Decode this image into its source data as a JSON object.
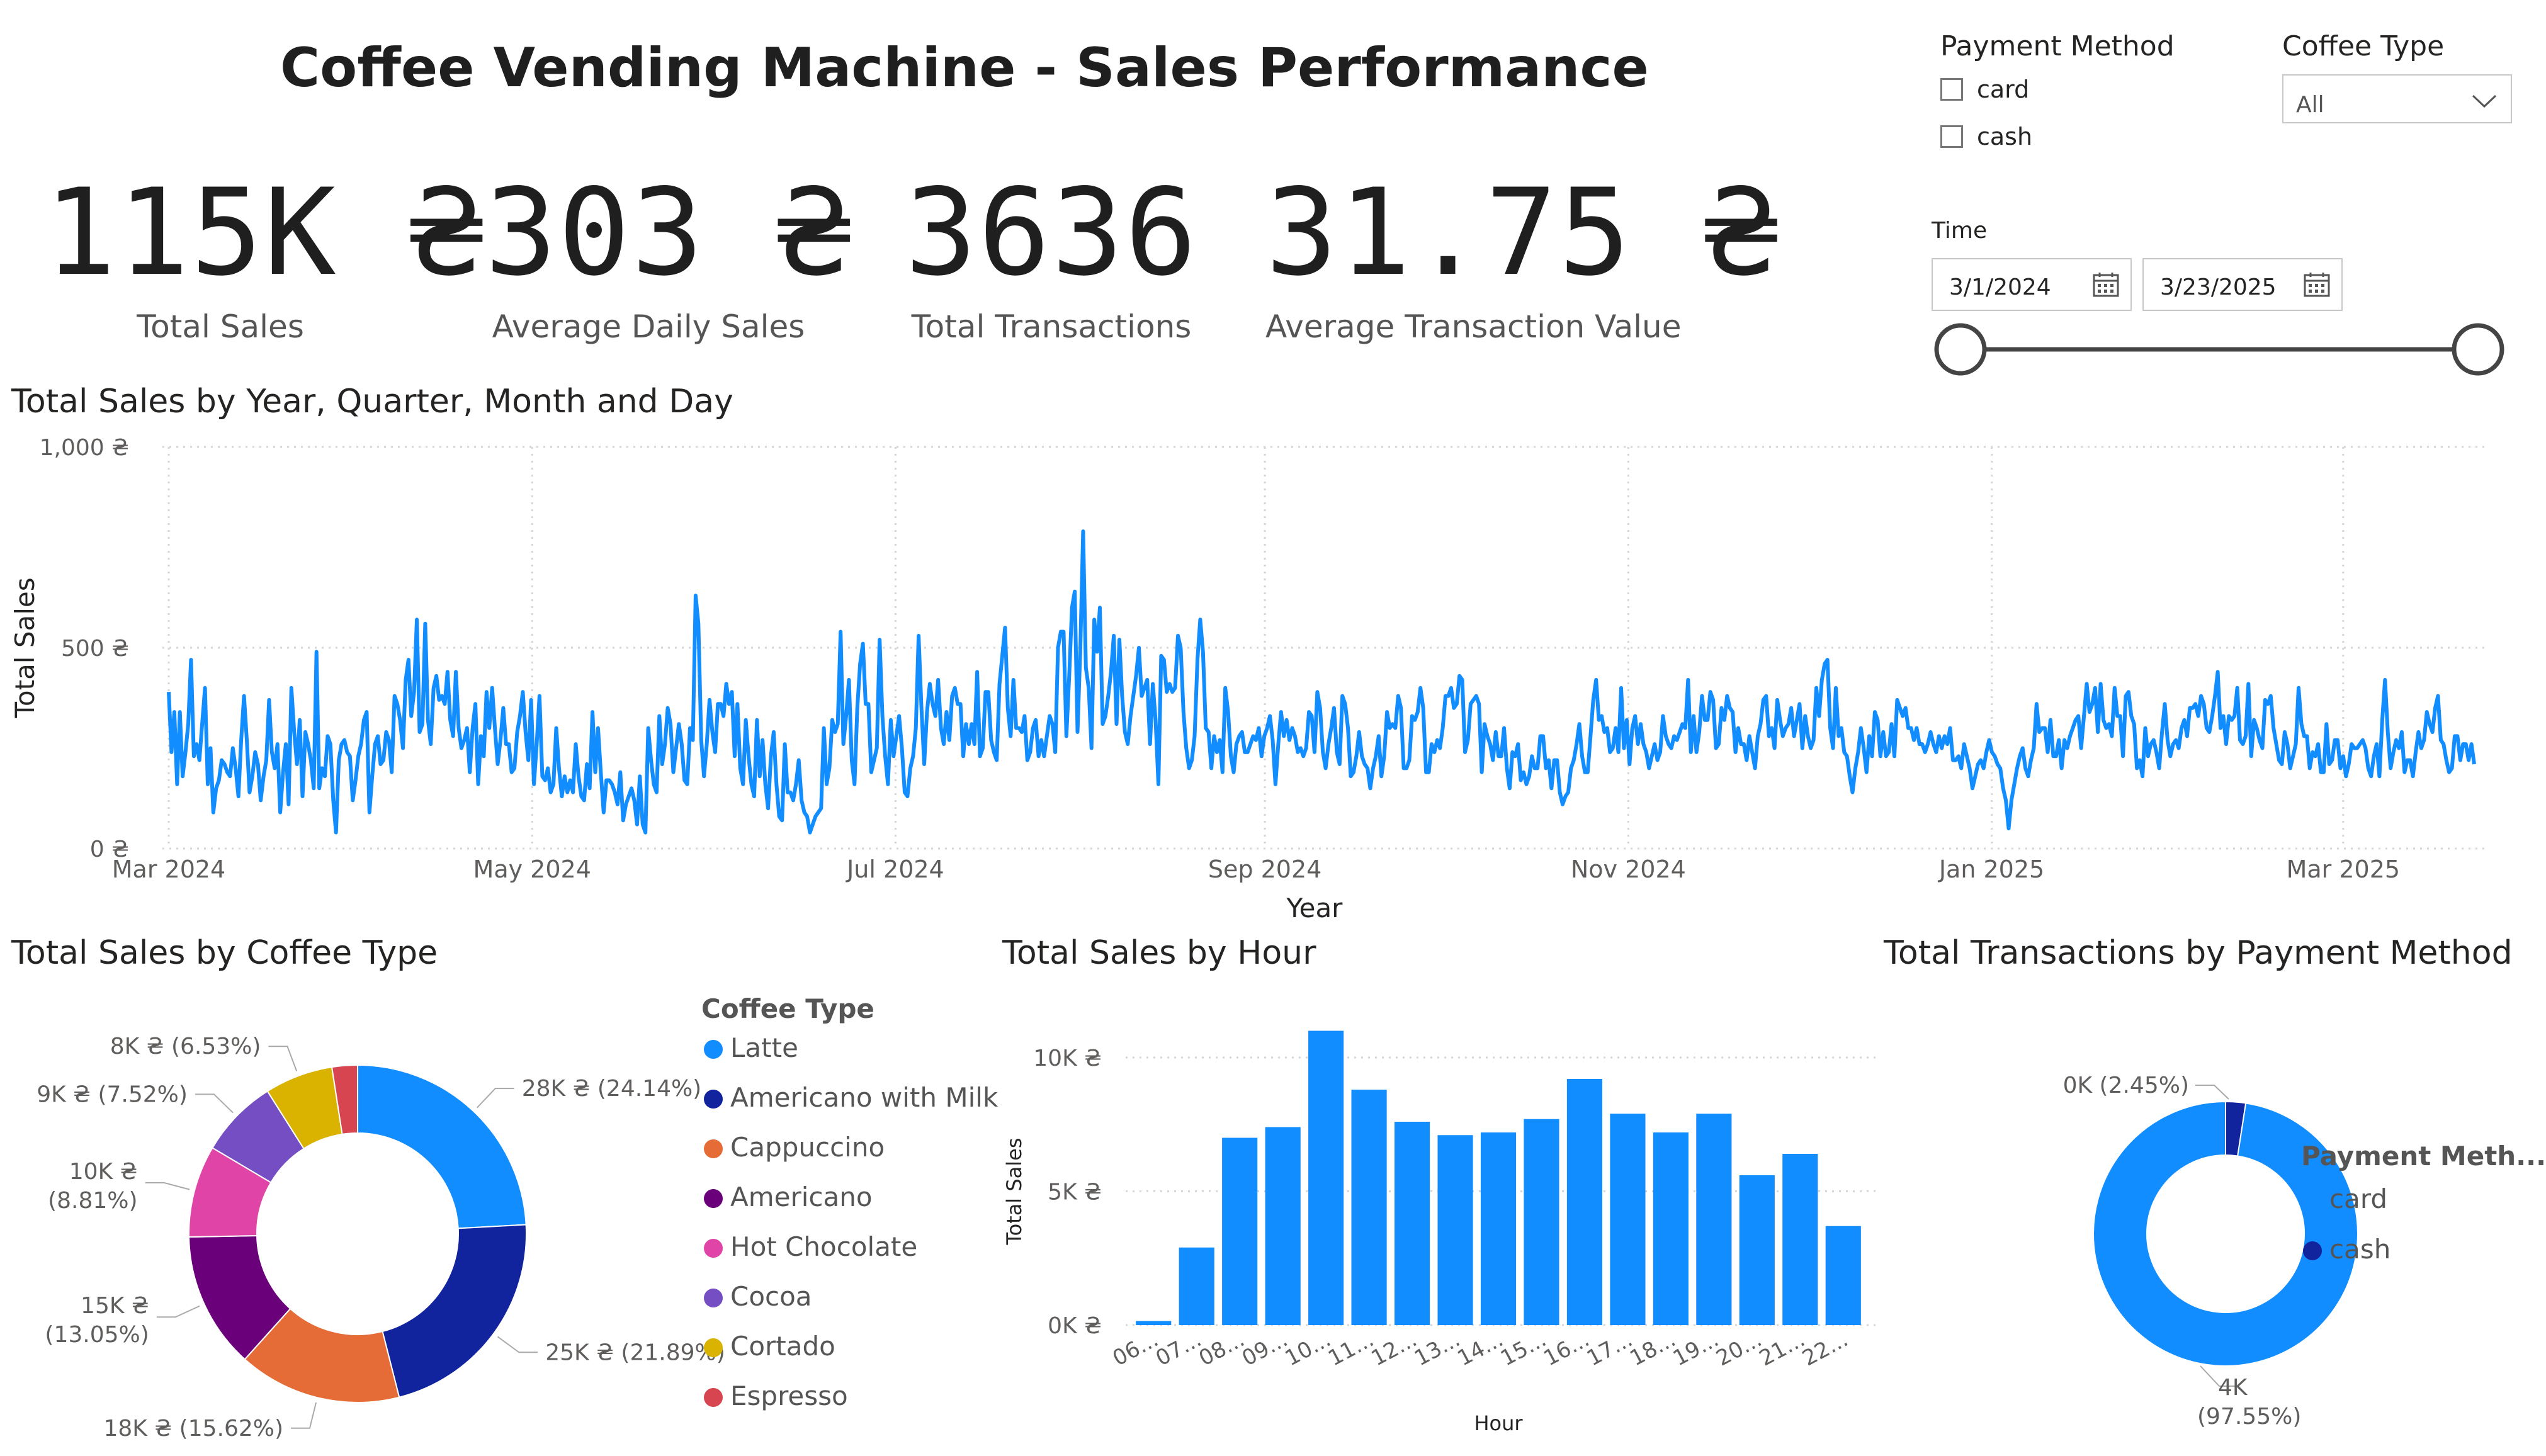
{
  "title": "Coffee Vending Machine - Sales Performance",
  "kpis": [
    {
      "value": "115K ₴",
      "label": "Total Sales"
    },
    {
      "value": "303 ₴",
      "label": "Average Daily Sales"
    },
    {
      "value": "3636",
      "label": "Total Transactions"
    },
    {
      "value": "31.75 ₴",
      "label": "Average Transaction Value"
    }
  ],
  "filters": {
    "payment_method": {
      "title": "Payment Method",
      "options": [
        "card",
        "cash"
      ]
    },
    "coffee_type": {
      "title": "Coffee Type",
      "selected": "All"
    },
    "time": {
      "title": "Time",
      "start": "3/1/2024",
      "end": "3/23/2025"
    }
  },
  "colors": {
    "primary": "#118DFF",
    "navy": "#12239E",
    "orange": "#E66C37",
    "purple": "#6B007B",
    "pink": "#E044A7",
    "violet": "#744EC2",
    "gold": "#D9B300",
    "red": "#D64550"
  },
  "line_section": {
    "title": "Total Sales by Year, Quarter, Month and Day"
  },
  "donut_section": {
    "title": "Total Sales by Coffee Type",
    "legend_title": "Coffee Type"
  },
  "hour_section": {
    "title": "Total Sales by Hour"
  },
  "pay_section": {
    "title": "Total Transactions by Payment Method",
    "legend_title": "Payment Meth..."
  },
  "chart_data": [
    {
      "type": "line",
      "title": "Total Sales by Year, Quarter, Month and Day",
      "xlabel": "Year",
      "ylabel": "Total Sales",
      "ylim": [
        0,
        1000
      ],
      "yticks": [
        "0 ₴",
        "500 ₴",
        "1,000 ₴"
      ],
      "xticks": [
        "Mar 2024",
        "May 2024",
        "Jul 2024",
        "Sep 2024",
        "Nov 2024",
        "Jan 2025",
        "Mar 2025"
      ],
      "x_start": "3/1/2024",
      "x_end": "3/23/2025",
      "values": [
        390,
        240,
        340,
        160,
        340,
        180,
        240,
        310,
        470,
        230,
        260,
        220,
        310,
        400,
        160,
        250,
        90,
        150,
        170,
        220,
        210,
        190,
        180,
        250,
        200,
        130,
        270,
        380,
        270,
        140,
        180,
        240,
        210,
        120,
        180,
        220,
        370,
        240,
        200,
        260,
        90,
        190,
        260,
        110,
        400,
        290,
        210,
        320,
        130,
        290,
        260,
        220,
        150,
        490,
        150,
        200,
        180,
        280,
        260,
        120,
        40,
        220,
        260,
        270,
        240,
        230,
        120,
        170,
        230,
        260,
        320,
        340,
        90,
        180,
        260,
        280,
        210,
        220,
        290,
        270,
        190,
        380,
        360,
        320,
        250,
        420,
        470,
        330,
        390,
        570,
        290,
        310,
        560,
        320,
        260,
        400,
        430,
        370,
        380,
        360,
        440,
        320,
        280,
        440,
        300,
        250,
        270,
        300,
        190,
        300,
        360,
        160,
        280,
        230,
        390,
        300,
        400,
        300,
        210,
        270,
        350,
        260,
        260,
        190,
        200,
        290,
        330,
        390,
        290,
        220,
        370,
        160,
        260,
        380,
        180,
        170,
        200,
        140,
        160,
        300,
        200,
        130,
        180,
        140,
        170,
        140,
        260,
        180,
        130,
        120,
        210,
        150,
        340,
        190,
        300,
        190,
        90,
        170,
        170,
        160,
        140,
        110,
        190,
        70,
        110,
        130,
        150,
        120,
        60,
        180,
        60,
        40,
        300,
        220,
        160,
        140,
        330,
        210,
        260,
        350,
        310,
        190,
        250,
        310,
        260,
        170,
        160,
        300,
        270,
        630,
        560,
        270,
        180,
        260,
        370,
        290,
        240,
        360,
        360,
        330,
        410,
        360,
        390,
        230,
        360,
        200,
        160,
        320,
        230,
        160,
        130,
        320,
        180,
        270,
        160,
        100,
        230,
        290,
        160,
        80,
        70,
        260,
        140,
        140,
        120,
        160,
        220,
        120,
        90,
        80,
        40,
        60,
        80,
        90,
        100,
        300,
        160,
        200,
        320,
        290,
        310,
        540,
        260,
        330,
        420,
        220,
        160,
        350,
        460,
        510,
        360,
        360,
        190,
        220,
        250,
        520,
        330,
        230,
        160,
        320,
        230,
        280,
        330,
        250,
        140,
        130,
        200,
        230,
        300,
        530,
        350,
        210,
        340,
        410,
        360,
        330,
        420,
        300,
        260,
        340,
        270,
        380,
        400,
        360,
        360,
        230,
        310,
        260,
        310,
        260,
        440,
        230,
        250,
        390,
        390,
        270,
        240,
        220,
        410,
        480,
        550,
        350,
        280,
        420,
        300,
        300,
        290,
        330,
        220,
        240,
        300,
        320,
        230,
        270,
        230,
        280,
        330,
        310,
        240,
        500,
        540,
        540,
        280,
        430,
        600,
        640,
        290,
        500,
        790,
        450,
        400,
        250,
        570,
        490,
        600,
        310,
        330,
        380,
        440,
        530,
        310,
        520,
        380,
        290,
        260,
        330,
        380,
        430,
        500,
        380,
        400,
        420,
        260,
        410,
        320,
        160,
        480,
        470,
        390,
        410,
        390,
        400,
        530,
        500,
        340,
        250,
        200,
        220,
        280,
        470,
        570,
        490,
        300,
        290,
        200,
        280,
        240,
        270,
        190,
        400,
        340,
        230,
        190,
        260,
        280,
        290,
        240,
        240,
        260,
        280,
        270,
        300,
        230,
        280,
        300,
        330,
        270,
        160,
        260,
        340,
        280,
        320,
        270,
        300,
        280,
        240,
        250,
        230,
        250,
        340,
        330,
        240,
        390,
        350,
        240,
        200,
        260,
        300,
        350,
        240,
        210,
        380,
        360,
        300,
        180,
        190,
        230,
        290,
        230,
        210,
        200,
        150,
        200,
        230,
        280,
        180,
        230,
        340,
        300,
        310,
        300,
        380,
        350,
        200,
        200,
        220,
        330,
        320,
        340,
        400,
        350,
        190,
        190,
        260,
        240,
        270,
        250,
        300,
        380,
        380,
        400,
        350,
        360,
        430,
        420,
        240,
        270,
        360,
        370,
        380,
        360,
        190,
        310,
        280,
        260,
        220,
        290,
        230,
        230,
        300,
        200,
        150,
        240,
        230,
        260,
        170,
        190,
        160,
        180,
        230,
        200,
        200,
        280,
        280,
        200,
        220,
        150,
        220,
        220,
        140,
        110,
        130,
        140,
        200,
        220,
        260,
        310,
        230,
        190,
        190,
        280,
        370,
        420,
        320,
        330,
        290,
        300,
        240,
        250,
        300,
        240,
        400,
        250,
        320,
        210,
        300,
        330,
        260,
        310,
        260,
        240,
        200,
        230,
        260,
        220,
        240,
        330,
        280,
        260,
        250,
        280,
        270,
        290,
        310,
        300,
        420,
        240,
        330,
        240,
        290,
        380,
        320,
        320,
        390,
        370,
        250,
        260,
        350,
        320,
        380,
        350,
        340,
        240,
        300,
        260,
        260,
        220,
        280,
        240,
        200,
        280,
        310,
        370,
        380,
        280,
        300,
        250,
        370,
        320,
        280,
        300,
        310,
        350,
        280,
        320,
        360,
        250,
        330,
        280,
        250,
        270,
        400,
        330,
        420,
        460,
        470,
        300,
        250,
        400,
        280,
        300,
        240,
        230,
        180,
        140,
        200,
        240,
        300,
        250,
        190,
        280,
        230,
        340,
        320,
        230,
        290,
        230,
        240,
        310,
        230,
        370,
        350,
        330,
        350,
        300,
        300,
        270,
        300,
        260,
        260,
        240,
        260,
        290,
        260,
        240,
        280,
        250,
        280,
        260,
        300,
        220,
        220,
        230,
        200,
        260,
        230,
        200,
        150,
        180,
        210,
        220,
        200,
        240,
        270,
        240,
        230,
        210,
        200,
        150,
        120,
        50,
        120,
        160,
        200,
        230,
        250,
        200,
        180,
        220,
        250,
        360,
        290,
        300,
        300,
        240,
        320,
        230,
        230,
        270,
        200,
        270,
        250,
        280,
        300,
        320,
        330,
        250,
        330,
        410,
        340,
        360,
        400,
        290,
        410,
        320,
        300,
        310,
        280,
        400,
        330,
        330,
        230,
        380,
        390,
        330,
        310,
        200,
        220,
        180,
        300,
        230,
        260,
        270,
        240,
        200,
        290,
        360,
        270,
        230,
        260,
        270,
        250,
        300,
        320,
        280,
        350,
        350,
        360,
        330,
        380,
        360,
        300,
        290,
        330,
        380,
        440,
        300,
        330,
        260,
        330,
        320,
        330,
        400,
        270,
        260,
        280,
        410,
        230,
        320,
        300,
        270,
        250,
        370,
        360,
        380,
        300,
        260,
        220,
        210,
        290,
        260,
        200,
        230,
        260,
        400,
        310,
        280,
        280,
        200,
        240,
        230,
        260,
        190,
        190,
        310,
        210,
        220,
        270,
        270,
        200,
        230,
        180,
        210,
        260,
        250,
        250,
        260,
        270,
        250,
        200,
        180,
        230,
        260,
        180,
        320,
        420,
        290,
        200,
        240,
        270,
        250,
        290,
        190,
        220,
        220,
        180,
        240,
        290,
        250,
        270,
        340,
        310,
        290,
        350,
        380,
        270,
        260,
        220,
        190,
        200,
        280,
        280,
        220,
        260,
        260,
        220,
        260,
        210
      ]
    },
    {
      "type": "pie",
      "title": "Total Sales by Coffee Type",
      "categories": [
        "Latte",
        "Americano with Milk",
        "Cappuccino",
        "Americano",
        "Hot Chocolate",
        "Cocoa",
        "Cortado",
        "Espresso"
      ],
      "values": [
        24.14,
        21.89,
        15.62,
        13.05,
        8.81,
        7.52,
        6.53,
        2.44
      ],
      "labels": [
        "28K ₴ (24.14%)",
        "25K ₴ (21.89%)",
        "18K ₴ (15.62%)",
        "15K ₴ (13.05%)",
        "10K ₴ (8.81%)",
        "9K ₴ (7.52%)",
        "8K ₴ (6.53%)",
        ""
      ],
      "colors": [
        "#118DFF",
        "#12239E",
        "#E66C37",
        "#6B007B",
        "#E044A7",
        "#744EC2",
        "#D9B300",
        "#D64550"
      ]
    },
    {
      "type": "bar",
      "title": "Total Sales by Hour",
      "xlabel": "Hour",
      "ylabel": "Total Sales",
      "ylim": [
        0,
        10000
      ],
      "yticks": [
        "0K ₴",
        "5K ₴",
        "10K ₴"
      ],
      "categories": [
        "06...",
        "07...",
        "08...",
        "09...",
        "10...",
        "11...",
        "12...",
        "13...",
        "14...",
        "15...",
        "16...",
        "17...",
        "18...",
        "19...",
        "20...",
        "21...",
        "22..."
      ],
      "values": [
        150,
        2900,
        7000,
        7400,
        11000,
        8800,
        7600,
        7100,
        7200,
        7700,
        9200,
        7900,
        7200,
        7900,
        5600,
        6400,
        3700
      ]
    },
    {
      "type": "pie",
      "title": "Total Transactions by Payment Method",
      "categories": [
        "card",
        "cash"
      ],
      "values": [
        97.55,
        2.45
      ],
      "labels": [
        "4K (97.55%)",
        "0K (2.45%)"
      ],
      "colors": [
        "#118DFF",
        "#12239E"
      ]
    }
  ]
}
